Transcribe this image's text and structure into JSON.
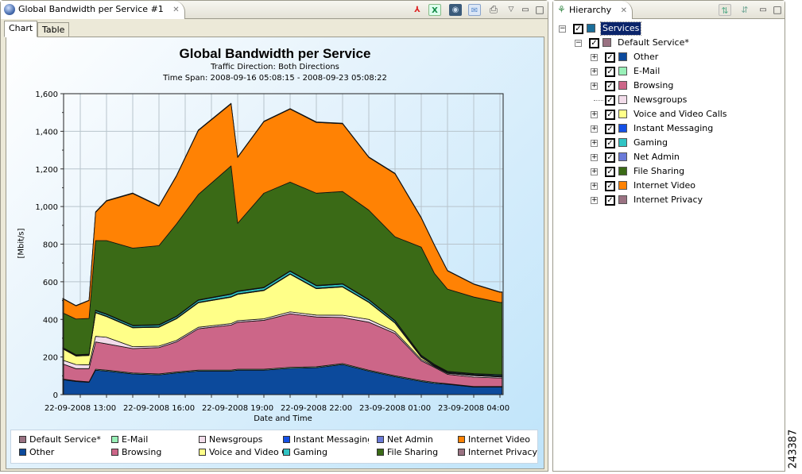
{
  "editor": {
    "tab_title": "Global Bandwidth per Service #1",
    "toolbar_icons": [
      "pdf-export-icon",
      "excel-export-icon",
      "camera-icon",
      "email-icon",
      "print-icon",
      "view-menu-icon",
      "minimize-icon",
      "maximize-icon"
    ],
    "subtabs": [
      {
        "label": "Chart",
        "active": true
      },
      {
        "label": "Table",
        "active": false
      }
    ]
  },
  "chart_data": {
    "type": "area",
    "stacked": true,
    "title": "Global Bandwidth per Service",
    "subtitle": "Traffic Direction: Both Directions",
    "subtitle2": "Time Span: 2008-09-16 05:08:15 - 2008-09-23 05:08:22",
    "xlabel": "Date and Time",
    "ylabel": "[Mbit/s]",
    "ylim": [
      0,
      1600
    ],
    "y_ticks": [
      0,
      200,
      400,
      600,
      800,
      1000,
      1200,
      1400,
      1600
    ],
    "x_range": [
      "2008-09-22 12:20",
      "2008-09-23 05:05"
    ],
    "x_tick_labels": [
      {
        "t": "2008-09-22 13:00",
        "label": "22-09-2008 13:00"
      },
      {
        "t": "2008-09-22 16:00",
        "label": "22-09-2008 16:00"
      },
      {
        "t": "2008-09-22 19:00",
        "label": "22-09-2008 19:00"
      },
      {
        "t": "2008-09-22 22:00",
        "label": "22-09-2008 22:00"
      },
      {
        "t": "2008-09-23 01:00",
        "label": "23-09-2008 01:00"
      },
      {
        "t": "2008-09-23 04:00",
        "label": "23-09-2008 04:00"
      }
    ],
    "grid": true,
    "legend_position": "bottom",
    "x": [
      "2008-09-22 12:20",
      "2008-09-22 12:50",
      "2008-09-22 13:20",
      "2008-09-22 13:35",
      "2008-09-22 14:00",
      "2008-09-22 15:00",
      "2008-09-22 16:00",
      "2008-09-22 16:40",
      "2008-09-22 17:30",
      "2008-09-22 18:45",
      "2008-09-22 19:00",
      "2008-09-22 20:00",
      "2008-09-22 21:00",
      "2008-09-22 22:00",
      "2008-09-22 23:00",
      "2008-09-23 00:00",
      "2008-09-23 01:00",
      "2008-09-23 02:00",
      "2008-09-23 02:30",
      "2008-09-23 03:00",
      "2008-09-23 04:00",
      "2008-09-23 05:00"
    ],
    "series": [
      {
        "name": "Other",
        "color": "#0c4a9c",
        "values": [
          80,
          70,
          65,
          130,
          125,
          110,
          105,
          115,
          125,
          125,
          130,
          130,
          140,
          143,
          160,
          125,
          95,
          70,
          60,
          55,
          40,
          40
        ]
      },
      {
        "name": "E-Mail",
        "color": "#99f0b8",
        "values": [
          3,
          3,
          3,
          5,
          5,
          5,
          5,
          5,
          5,
          5,
          5,
          5,
          5,
          5,
          5,
          5,
          5,
          5,
          5,
          3,
          3,
          3
        ]
      },
      {
        "name": "Browsing",
        "color": "#cc6688",
        "values": [
          80,
          65,
          70,
          145,
          140,
          130,
          140,
          160,
          220,
          240,
          250,
          260,
          285,
          265,
          245,
          255,
          225,
          105,
          80,
          50,
          50,
          45
        ]
      },
      {
        "name": "Newsgroups",
        "color": "#f2dcea",
        "values": [
          20,
          22,
          20,
          30,
          35,
          10,
          8,
          8,
          8,
          8,
          8,
          8,
          10,
          10,
          12,
          15,
          10,
          8,
          5,
          5,
          8,
          6
        ]
      },
      {
        "name": "Voice and Video Calls",
        "color": "#ffff88",
        "values": [
          60,
          45,
          50,
          125,
          110,
          100,
          100,
          115,
          130,
          140,
          140,
          150,
          200,
          140,
          150,
          90,
          45,
          10,
          3,
          3,
          3,
          3
        ]
      },
      {
        "name": "Instant Messaging",
        "color": "#1450e6",
        "values": [
          2,
          2,
          2,
          3,
          3,
          3,
          3,
          3,
          3,
          3,
          3,
          3,
          3,
          3,
          3,
          3,
          3,
          3,
          2,
          2,
          2,
          2
        ]
      },
      {
        "name": "Gaming",
        "color": "#30c4c4",
        "values": [
          3,
          3,
          3,
          8,
          8,
          8,
          8,
          8,
          10,
          12,
          12,
          12,
          12,
          12,
          12,
          10,
          8,
          5,
          4,
          4,
          4,
          5
        ]
      },
      {
        "name": "Net Admin",
        "color": "#6a7ad8",
        "values": [
          2,
          2,
          2,
          3,
          3,
          3,
          3,
          3,
          3,
          3,
          3,
          3,
          3,
          3,
          3,
          3,
          3,
          3,
          2,
          2,
          2,
          2
        ]
      },
      {
        "name": "File Sharing",
        "color": "#3a6a16",
        "values": [
          185,
          190,
          190,
          370,
          390,
          410,
          420,
          490,
          560,
          680,
          360,
          500,
          472,
          490,
          490,
          475,
          445,
          575,
          484,
          437,
          407,
          384
        ]
      },
      {
        "name": "Internet Video",
        "color": "#ff8204",
        "values": [
          75,
          70,
          95,
          150,
          210,
          290,
          210,
          255,
          340,
          330,
          350,
          380,
          388,
          376,
          360,
          280,
          335,
          155,
          150,
          97,
          68,
          54
        ]
      },
      {
        "name": "Internet Privacy",
        "color": "#9a7282",
        "values": [
          2,
          2,
          2,
          3,
          3,
          3,
          3,
          3,
          3,
          3,
          3,
          3,
          3,
          3,
          3,
          3,
          3,
          3,
          2,
          2,
          2,
          2
        ]
      }
    ]
  },
  "legend": [
    {
      "label": "Default Service*",
      "color": "#9a7282"
    },
    {
      "label": "Other",
      "color": "#0c4a9c"
    },
    {
      "label": "E-Mail",
      "color": "#99f0b8"
    },
    {
      "label": "Browsing",
      "color": "#cc6688"
    },
    {
      "label": "Newsgroups",
      "color": "#f2dcea"
    },
    {
      "label": "Voice and Video Ca",
      "color": "#ffff88"
    },
    {
      "label": "Instant Messaging",
      "color": "#1450e6"
    },
    {
      "label": "Gaming",
      "color": "#30c4c4"
    },
    {
      "label": "Net Admin",
      "color": "#6a7ad8"
    },
    {
      "label": "File Sharing",
      "color": "#3a6a16"
    },
    {
      "label": "Internet Video",
      "color": "#ff8204"
    },
    {
      "label": "Internet Privacy",
      "color": "#9a7282"
    }
  ],
  "hierarchy": {
    "tab_title": "Hierarchy",
    "toolbar_icons": [
      "sort-tree-icon",
      "expand-tree-icon",
      "minimize-icon",
      "maximize-icon"
    ],
    "root": {
      "label": "Services",
      "color": "#1a6e9a",
      "checked": true,
      "expanded": true,
      "selected": true
    },
    "group": {
      "label": "Default Service*",
      "color": "#9a7282",
      "checked": true,
      "expanded": true
    },
    "items": [
      {
        "label": "Other",
        "color": "#0c4a9c",
        "checked": true,
        "expandable": true
      },
      {
        "label": "E-Mail",
        "color": "#99f0b8",
        "checked": true,
        "expandable": true
      },
      {
        "label": "Browsing",
        "color": "#cc6688",
        "checked": true,
        "expandable": true
      },
      {
        "label": "Newsgroups",
        "color": "#f2dcea",
        "checked": true,
        "expandable": false
      },
      {
        "label": "Voice and Video Calls",
        "color": "#ffff88",
        "checked": true,
        "expandable": true
      },
      {
        "label": "Instant Messaging",
        "color": "#1450e6",
        "checked": true,
        "expandable": true
      },
      {
        "label": "Gaming",
        "color": "#30c4c4",
        "checked": true,
        "expandable": true
      },
      {
        "label": "Net Admin",
        "color": "#6a7ad8",
        "checked": true,
        "expandable": true
      },
      {
        "label": "File Sharing",
        "color": "#3a6a16",
        "checked": true,
        "expandable": true
      },
      {
        "label": "Internet Video",
        "color": "#ff8204",
        "checked": true,
        "expandable": true
      },
      {
        "label": "Internet Privacy",
        "color": "#9a7282",
        "checked": true,
        "expandable": true
      }
    ]
  },
  "side_id": "243387"
}
